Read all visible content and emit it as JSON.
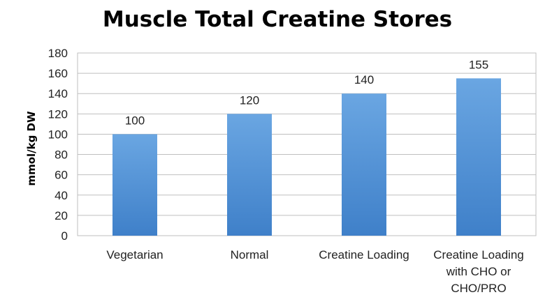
{
  "chart_data": {
    "type": "bar",
    "title": "Muscle Total Creatine Stores",
    "xlabel": "",
    "ylabel": "mmol/kg DW",
    "ylim": [
      0,
      180
    ],
    "yticks": [
      0,
      20,
      40,
      60,
      80,
      100,
      120,
      140,
      160,
      180
    ],
    "grid": true,
    "legend": "none",
    "categories": [
      [
        "Vegetarian"
      ],
      [
        "Normal"
      ],
      [
        "Creatine Loading"
      ],
      [
        "Creatine Loading",
        "with CHO or",
        "CHO/PRO"
      ]
    ],
    "values": [
      100,
      120,
      140,
      155
    ],
    "data_labels": [
      "100",
      "120",
      "140",
      "155"
    ],
    "bar_color": "#4f8fd6",
    "bar_gradient": [
      "#6aa6e2",
      "#3f80c9"
    ]
  }
}
